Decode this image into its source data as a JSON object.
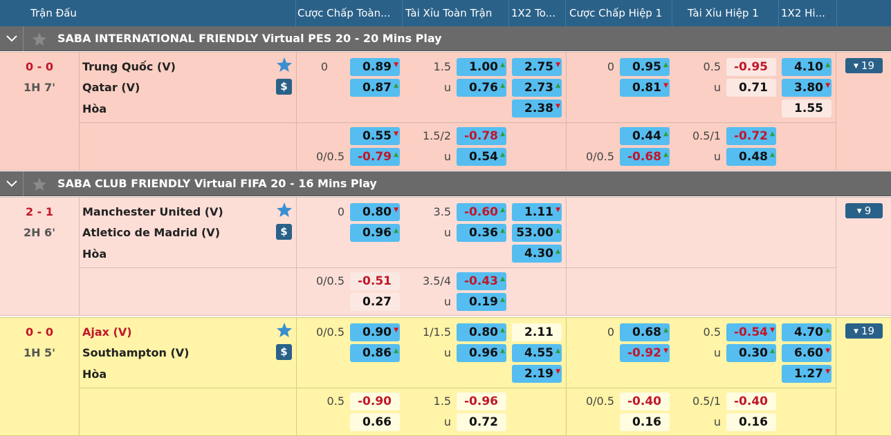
{
  "header": {
    "match": "Trận Đấu",
    "hdp_ft": "Cược Chấp Toàn...",
    "ou_ft": "Tài Xỉu Toàn Trận",
    "x12_ft": "1X2 To...",
    "hdp_h1": "Cược Chấp Hiệp 1",
    "ou_h1": "Tài Xỉu Hiệp 1",
    "x12_h1": "1X2 Hi..."
  },
  "leagues": [
    {
      "title": "SABA INTERNATIONAL FRIENDLY Virtual PES 20 - 20 Mins Play"
    },
    {
      "title": "SABA CLUB FRIENDLY Virtual FIFA 20 - 16 Mins Play"
    }
  ],
  "colors": {
    "header": "#2a6188",
    "odds_blue": "#55bdf0",
    "negative": "#c0172a",
    "arrow_up": "#2e9e3a",
    "arrow_down": "#d8131e",
    "match_bg_1": "#fbcfc3",
    "match_bg_2": "#fcded7",
    "match_bg_3": "#fff4a7"
  },
  "icons": {
    "collapse": "chevron-down-icon",
    "favorite": "star-icon",
    "cashout": "dollar-icon"
  },
  "matches": [
    {
      "score": "0 - 0",
      "time": "1H 7'",
      "home": "Trung Quốc (V)",
      "away": "Qatar (V)",
      "draw": "Hòa",
      "more": "19",
      "row1": {
        "hdp_line": "0",
        "hdp_home": "0.89",
        "hdp_away": "0.87",
        "ou_line": "1.5",
        "ou_u": "u",
        "ou_over": "1.00",
        "ou_under": "0.76",
        "x1": "2.75",
        "x2": "2.73",
        "xd": "2.38",
        "h1_hdp_line": "0",
        "h1_hdp_home": "0.95",
        "h1_hdp_away": "0.81",
        "h1_ou_line": "0.5",
        "h1_ou_u": "u",
        "h1_ou_over": "-0.95",
        "h1_ou_under": "0.71",
        "h1_x1": "4.10",
        "h1_x2": "3.80",
        "h1_xd": "1.55"
      },
      "row2": {
        "hdp_line": "0/0.5",
        "hdp_home": "0.55",
        "hdp_away": "-0.79",
        "ou_line": "1.5/2",
        "ou_u": "u",
        "ou_over": "-0.78",
        "ou_under": "0.54",
        "h1_hdp_line": "0/0.5",
        "h1_hdp_home": "0.44",
        "h1_hdp_away": "-0.68",
        "h1_ou_line": "0.5/1",
        "h1_ou_u": "u",
        "h1_ou_over": "-0.72",
        "h1_ou_under": "0.48"
      }
    },
    {
      "score": "2 - 1",
      "time": "2H 6'",
      "home": "Manchester United (V)",
      "away": "Atletico de Madrid (V)",
      "draw": "Hòa",
      "more": "9",
      "row1": {
        "hdp_line": "0",
        "hdp_home": "0.80",
        "hdp_away": "0.96",
        "ou_line": "3.5",
        "ou_u": "u",
        "ou_over": "-0.60",
        "ou_under": "0.36",
        "x1": "1.11",
        "x2": "53.00",
        "xd": "4.30"
      },
      "row2": {
        "hdp_line": "0/0.5",
        "hdp_home": "-0.51",
        "hdp_away": "0.27",
        "ou_line": "3.5/4",
        "ou_u": "u",
        "ou_over": "-0.43",
        "ou_under": "0.19"
      }
    },
    {
      "score": "0 - 0",
      "time": "1H 5'",
      "home": "Ajax (V)",
      "away": "Southampton (V)",
      "draw": "Hòa",
      "more": "19",
      "row1": {
        "hdp_line": "0/0.5",
        "hdp_home": "0.90",
        "hdp_away": "0.86",
        "ou_line": "1/1.5",
        "ou_u": "u",
        "ou_over": "0.80",
        "ou_under": "0.96",
        "x1": "2.11",
        "x2": "4.55",
        "xd": "2.19",
        "h1_hdp_line": "0",
        "h1_hdp_home": "0.68",
        "h1_hdp_away": "-0.92",
        "h1_ou_line": "0.5",
        "h1_ou_u": "u",
        "h1_ou_over": "-0.54",
        "h1_ou_under": "0.30",
        "h1_x1": "4.70",
        "h1_x2": "6.60",
        "h1_xd": "1.27"
      },
      "row2": {
        "hdp_line": "0.5",
        "hdp_home": "-0.90",
        "hdp_away": "0.66",
        "ou_line": "1.5",
        "ou_u": "u",
        "ou_over": "-0.96",
        "ou_under": "0.72",
        "h1_hdp_line": "0/0.5",
        "h1_hdp_home": "-0.40",
        "h1_hdp_away": "0.16",
        "h1_ou_line": "0.5/1",
        "h1_ou_u": "u",
        "h1_ou_over": "-0.40",
        "h1_ou_under": "0.16"
      }
    }
  ]
}
